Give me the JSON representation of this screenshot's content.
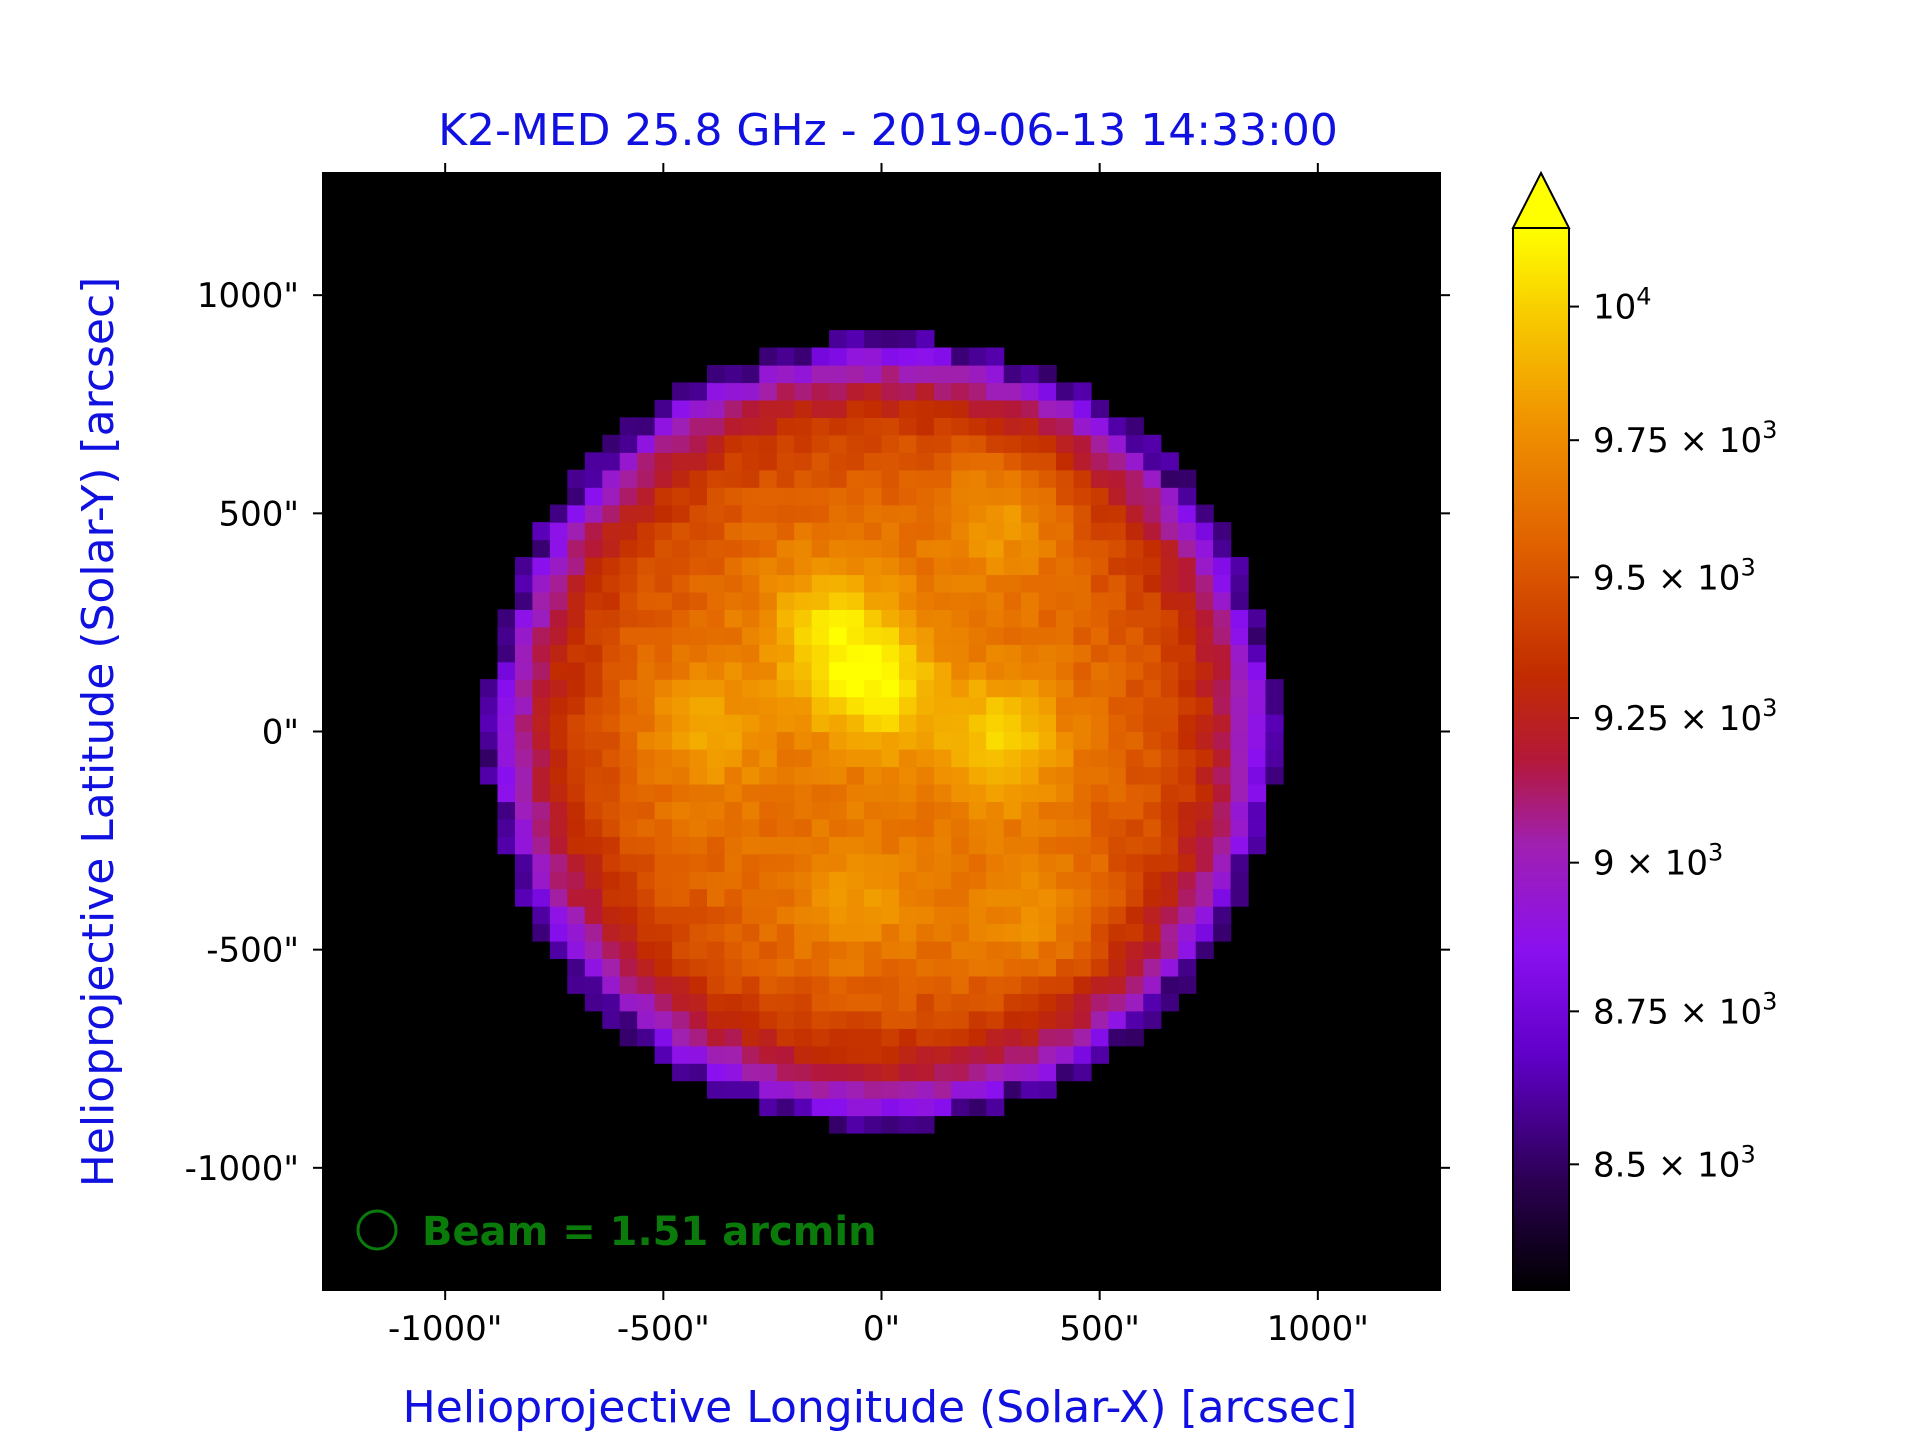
{
  "chart_data": {
    "type": "heatmap",
    "title": "K2-MED 25.8 GHz - 2019-06-13 14:33:00",
    "xlabel": "Helioprojective Longitude (Solar-X) [arcsec]",
    "ylabel": "Helioprojective Latitude (Solar-Y) [arcsec]",
    "title_color": "#1010e0",
    "xlim": [
      -1280,
      1280
    ],
    "ylim": [
      -1280,
      1280
    ],
    "x_ticks": [
      -1000,
      -500,
      0,
      500,
      1000
    ],
    "x_tick_labels": [
      "-1000\"",
      "-500\"",
      "0\"",
      "500\"",
      "1000\""
    ],
    "y_ticks": [
      1000,
      500,
      0,
      -500,
      -1000
    ],
    "y_tick_labels": [
      "1000\"",
      "500\"",
      "0\"",
      "-500\"",
      "-1000\""
    ],
    "background": "#000000",
    "disk": {
      "center_x": 0,
      "center_y": 0,
      "radius_arcsec": 900,
      "pixel_size_arcsec": 40,
      "limb_value": 8650,
      "interior_mean": 9600,
      "bright_regions": [
        {
          "x": -20,
          "y": 100,
          "value": 10050
        },
        {
          "x": 270,
          "y": -20,
          "value": 10000
        },
        {
          "x": -120,
          "y": 250,
          "value": 9950
        },
        {
          "x": -400,
          "y": 0,
          "value": 9850
        },
        {
          "x": 280,
          "y": 500,
          "value": 9850
        },
        {
          "x": 350,
          "y": -450,
          "value": 9800
        },
        {
          "x": -60,
          "y": -380,
          "value": 9800
        }
      ]
    },
    "colormap": "gnuplot2-like (black-purple-red-orange-yellow)",
    "colorbar": {
      "scale": "log",
      "range": [
        8300,
        10150
      ],
      "extend": "max",
      "ticks": [
        8500,
        8750,
        9000,
        9250,
        9500,
        9750,
        10000
      ],
      "tick_labels": [
        "8.5 × 10^3",
        "8.75 × 10^3",
        "9 × 10^3",
        "9.25 × 10^3",
        "9.5 × 10^3",
        "9.75 × 10^3",
        "10^4"
      ]
    },
    "beam": {
      "label": "Beam = 1.51 arcmin",
      "color": "#0a7a0a"
    },
    "grid": false
  }
}
